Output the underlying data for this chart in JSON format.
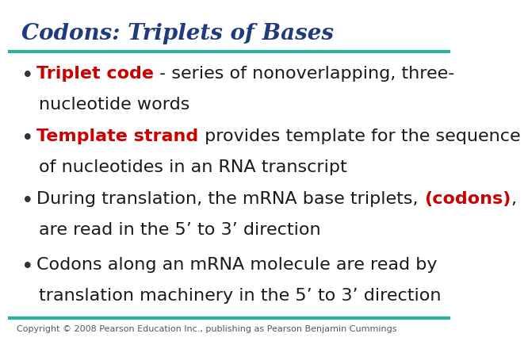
{
  "title": "Codons: Triplets of Bases",
  "title_color": "#1F3A7D",
  "title_fontsize": 20,
  "line_color": "#2AAFA0",
  "background_color": "#FFFFFF",
  "bullet_color": "#333333",
  "bullet_fontsize": 16,
  "footer": "Copyright © 2008 Pearson Education Inc., publishing as Pearson Benjamin Cummings",
  "footer_fontsize": 8,
  "bullets": [
    {
      "parts": [
        {
          "text": "Triplet code",
          "bold": true,
          "color": "#CC0000"
        },
        {
          "text": " - series of nonoverlapping, three-\nnucleotide words",
          "bold": false,
          "color": "#1a1a1a"
        }
      ]
    },
    {
      "parts": [
        {
          "text": "Template strand",
          "bold": true,
          "color": "#CC0000"
        },
        {
          "text": " provides template for the sequence\nof nucleotides in an RNA transcript",
          "bold": false,
          "color": "#1a1a1a"
        }
      ]
    },
    {
      "parts": [
        {
          "text": "During translation, the mRNA base triplets, ",
          "bold": false,
          "color": "#1a1a1a"
        },
        {
          "text": "(codons)",
          "bold": true,
          "color": "#CC0000"
        },
        {
          "text": ",\nare read in the 5’ to 3’ direction",
          "bold": false,
          "color": "#1a1a1a"
        }
      ]
    },
    {
      "parts": [
        {
          "text": "Codons along an mRNA molecule are read by\ntranslation machinery in the 5’ to 3’ direction",
          "bold": false,
          "color": "#1a1a1a"
        }
      ]
    }
  ]
}
